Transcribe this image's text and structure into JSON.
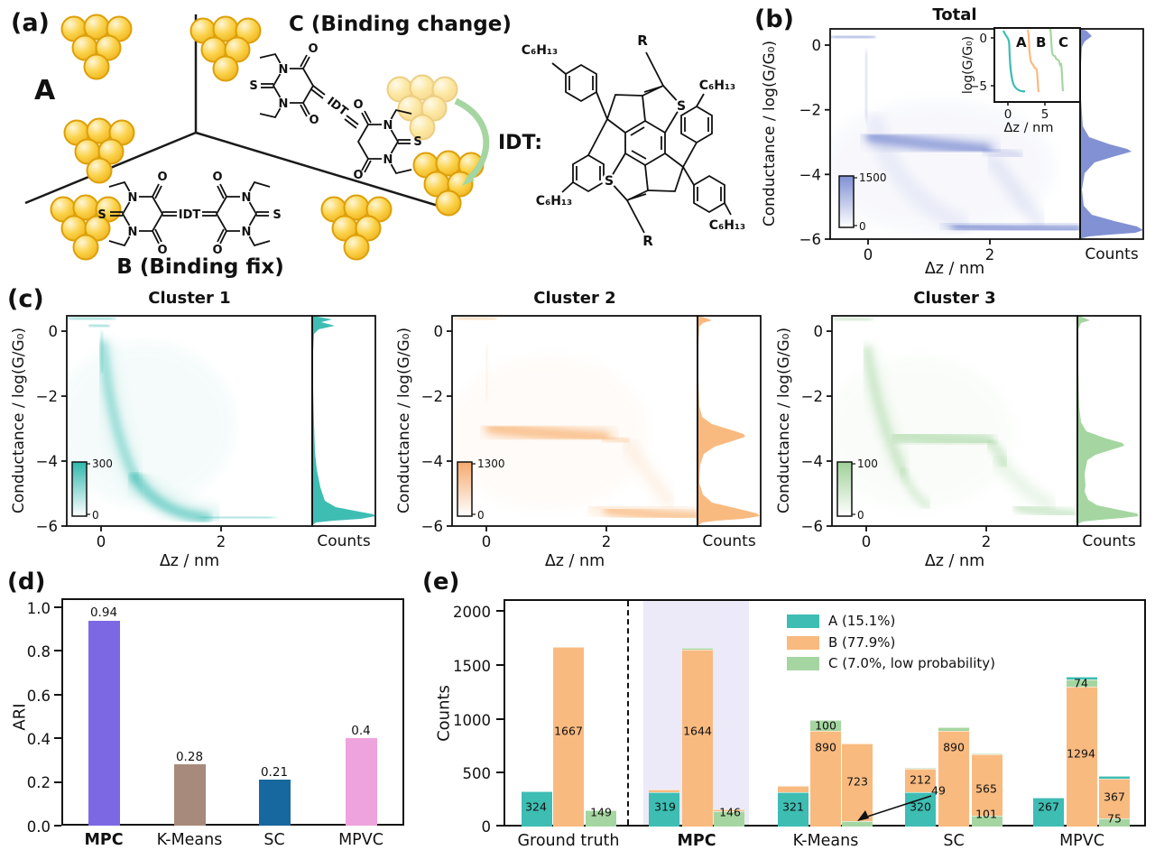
{
  "colors": {
    "A": "#3ebdb3",
    "B": "#f9ba80",
    "C": "#a5d6a1"
  },
  "panel_tags": {
    "a": "(a)",
    "b": "(b)",
    "c": "(c)",
    "d": "(d)",
    "e": "(e)"
  },
  "panel_a": {
    "tag": "(a)",
    "label_a": "A",
    "label_b": "B (Binding fix)",
    "label_c": "C (Binding change)",
    "idt_prefix": "IDT:",
    "idt": "IDT",
    "atom_s": "S",
    "atom_n": "N",
    "atom_o": "O",
    "r_group": "R",
    "hexyl": "C₆H₁₃"
  },
  "chart_data": [
    {
      "id": "total",
      "type": "heatmap",
      "title": "Total",
      "xlabel": "Δz / nm",
      "ylabel": "Conductance / log(G/G₀)",
      "marginal_label": "Counts",
      "x_ticks": [
        0,
        2
      ],
      "y_ticks": [
        0,
        -2,
        -4,
        -6
      ],
      "x_tick_labels": [
        "0",
        "2"
      ],
      "y_tick_labels": [
        "0",
        "−2",
        "−4",
        "−6"
      ],
      "x_range": [
        -0.65,
        3.6
      ],
      "y_range": [
        0.6,
        -6.1
      ],
      "colorbar": {
        "min": 0,
        "max": 1500,
        "min_label": "0",
        "max_label": "1500"
      },
      "color": "#8191d3",
      "density_features": [
        {
          "feature": "snap-off cliff",
          "x": 0,
          "y": [
            0.5,
            -2.2
          ]
        },
        {
          "feature": "molecular plateau",
          "y": [
            -2.9,
            -3.6
          ],
          "x": [
            0.2,
            2.2
          ]
        },
        {
          "feature": "noise floor band",
          "y": [
            -5.6,
            -6.0
          ],
          "x": [
            1.4,
            3.6
          ]
        }
      ],
      "inset": {
        "xlabel": "Δz / nm",
        "ylabel": "log(G/G₀)",
        "x_tick_labels": [
          "0",
          "5"
        ],
        "y_tick_labels": [
          "0",
          "−5"
        ],
        "series": [
          {
            "label": "A",
            "color_key": "A"
          },
          {
            "label": "B",
            "color_key": "B"
          },
          {
            "label": "C",
            "color_key": "C"
          }
        ]
      }
    },
    {
      "id": "cluster1",
      "type": "heatmap",
      "title": "Cluster 1",
      "xlabel": "Δz / nm",
      "ylabel": "Conductance / log(G/G₀)",
      "marginal_label": "Counts",
      "x_ticks": [
        0,
        2
      ],
      "y_ticks": [
        0,
        -2,
        -4,
        -6
      ],
      "x_tick_labels": [
        "0",
        "2"
      ],
      "y_tick_labels": [
        "0",
        "−2",
        "−4",
        "−6"
      ],
      "colorbar": {
        "min": 0,
        "max": 300,
        "min_label": "0",
        "max_label": "300"
      },
      "color": "#3ebdb3",
      "density_features": [
        {
          "feature": "snap-off cliff",
          "x": 0,
          "y": [
            0.5,
            -1.5
          ]
        },
        {
          "feature": "exponential decay to noise floor",
          "x": [
            0,
            1.3
          ],
          "y": [
            -1.5,
            -5.8
          ]
        },
        {
          "feature": "noise floor band",
          "y": [
            -5.7,
            -6.0
          ],
          "x": [
            1.0,
            2.8
          ]
        }
      ]
    },
    {
      "id": "cluster2",
      "type": "heatmap",
      "title": "Cluster 2",
      "xlabel": "Δz / nm",
      "ylabel": "Conductance / log(G/G₀)",
      "marginal_label": "Counts",
      "x_ticks": [
        0,
        2
      ],
      "y_ticks": [
        0,
        -2,
        -4,
        -6
      ],
      "x_tick_labels": [
        "0",
        "2"
      ],
      "y_tick_labels": [
        "0",
        "−2",
        "−4",
        "−6"
      ],
      "colorbar": {
        "min": 0,
        "max": 1300,
        "min_label": "0",
        "max_label": "1300"
      },
      "color": "#f9ba80",
      "density_features": [
        {
          "feature": "snap-off cliff",
          "x": 0,
          "y": [
            0.5,
            -2.3
          ]
        },
        {
          "feature": "molecular plateau",
          "y": [
            -3.0,
            -3.6
          ],
          "x": [
            0.1,
            2.2
          ]
        },
        {
          "feature": "noise floor band",
          "y": [
            -5.6,
            -6.0
          ],
          "x": [
            2.0,
            3.6
          ]
        }
      ]
    },
    {
      "id": "cluster3",
      "type": "heatmap",
      "title": "Cluster 3",
      "xlabel": "Δz / nm",
      "ylabel": "Conductance / log(G/G₀)",
      "marginal_label": "Counts",
      "x_ticks": [
        0,
        2
      ],
      "y_ticks": [
        0,
        -2,
        -4,
        -6
      ],
      "x_tick_labels": [
        "0",
        "2"
      ],
      "y_tick_labels": [
        "0",
        "−2",
        "−4",
        "−6"
      ],
      "colorbar": {
        "min": 0,
        "max": 100,
        "min_label": "0",
        "max_label": "100"
      },
      "color": "#a5d6a1",
      "density_features": [
        {
          "feature": "snap-off cliff",
          "x": 0,
          "y": [
            0.5,
            -1.8
          ]
        },
        {
          "feature": "sloped decay streaks",
          "x": [
            0,
            0.9
          ],
          "y": [
            -1.5,
            -5.5
          ]
        },
        {
          "feature": "binding-change hump",
          "y": [
            -3.0,
            -3.9
          ],
          "x": [
            1.0,
            2.3
          ]
        },
        {
          "feature": "noise floor band",
          "y": [
            -5.6,
            -6.0
          ],
          "x": [
            2.2,
            3.6
          ]
        }
      ]
    },
    {
      "id": "ari",
      "type": "bar",
      "ylabel": "ARI",
      "categories": [
        "MPC",
        "K-Means",
        "SC",
        "MPVC"
      ],
      "bold_category": "MPC",
      "values": [
        0.94,
        0.28,
        0.21,
        0.4
      ],
      "value_labels": [
        "0.94",
        "0.28",
        "0.21",
        "0.4"
      ],
      "y_tick_labels": [
        "1.0",
        "0.8",
        "0.6",
        "0.4",
        "0.2",
        "0.0"
      ],
      "ylim": [
        0,
        1.05
      ],
      "bar_colors": [
        "#7d68e4",
        "#a78a7b",
        "#16689e",
        "#efa3dc"
      ]
    },
    {
      "id": "counts_by_method",
      "type": "stacked_bar",
      "ylabel": "Counts",
      "ylim": [
        0,
        2110
      ],
      "y_ticks": [
        0,
        500,
        1000,
        1500,
        2000
      ],
      "y_tick_labels": [
        "2000",
        "1500",
        "1000",
        "500",
        "0"
      ],
      "legend": [
        {
          "key": "A",
          "label": "A (15.1%)"
        },
        {
          "key": "B",
          "label": "B (77.9%)"
        },
        {
          "key": "C",
          "label": "C (7.0%, low probability)"
        }
      ],
      "highlight_group": "MPC",
      "annotation": {
        "text": "49",
        "target": "K-Means third bar bottom segment"
      },
      "groups": [
        {
          "label": "Ground truth",
          "bold": false,
          "bars": [
            {
              "segments": [
                {
                  "c": "A",
                  "v": 324
                }
              ],
              "labels": [
                "324"
              ]
            },
            {
              "segments": [
                {
                  "c": "B",
                  "v": 1667
                }
              ],
              "labels": [
                "1667"
              ]
            },
            {
              "segments": [
                {
                  "c": "C",
                  "v": 149
                }
              ],
              "labels": [
                "149"
              ]
            }
          ]
        },
        {
          "label": "MPC",
          "bold": true,
          "bars": [
            {
              "segments": [
                {
                  "c": "A",
                  "v": 319
                },
                {
                  "c": "B",
                  "v": 21
                }
              ],
              "labels": [
                "319"
              ]
            },
            {
              "segments": [
                {
                  "c": "B",
                  "v": 1644
                },
                {
                  "c": "C",
                  "v": 12
                }
              ],
              "labels": [
                "1644"
              ]
            },
            {
              "segments": [
                {
                  "c": "C",
                  "v": 146
                },
                {
                  "c": "B",
                  "v": 12
                }
              ],
              "labels": [
                "146"
              ]
            }
          ]
        },
        {
          "label": "K-Means",
          "bold": false,
          "bars": [
            {
              "segments": [
                {
                  "c": "A",
                  "v": 321
                },
                {
                  "c": "B",
                  "v": 52
                }
              ],
              "labels": [
                "321"
              ]
            },
            {
              "segments": [
                {
                  "c": "B",
                  "v": 890
                },
                {
                  "c": "C",
                  "v": 100
                }
              ],
              "labels": [
                "890",
                "100"
              ]
            },
            {
              "segments": [
                {
                  "c": "C",
                  "v": 49
                },
                {
                  "c": "B",
                  "v": 723
                }
              ],
              "labels": [
                "723",
                "49"
              ]
            }
          ]
        },
        {
          "label": "SC",
          "bold": false,
          "bars": [
            {
              "segments": [
                {
                  "c": "A",
                  "v": 320
                },
                {
                  "c": "B",
                  "v": 212
                },
                {
                  "c": "C",
                  "v": 16
                }
              ],
              "labels": [
                "320",
                "212"
              ]
            },
            {
              "segments": [
                {
                  "c": "B",
                  "v": 890
                },
                {
                  "c": "C",
                  "v": 28
                }
              ],
              "labels": [
                "890"
              ]
            },
            {
              "segments": [
                {
                  "c": "C",
                  "v": 101
                },
                {
                  "c": "B",
                  "v": 565
                },
                {
                  "c": "C",
                  "v": 10
                }
              ],
              "labels": [
                "565",
                "101"
              ]
            }
          ]
        },
        {
          "label": "MPVC",
          "bold": false,
          "bars": [
            {
              "segments": [
                {
                  "c": "A",
                  "v": 267
                }
              ],
              "labels": [
                "267"
              ]
            },
            {
              "segments": [
                {
                  "c": "B",
                  "v": 1294
                },
                {
                  "c": "C",
                  "v": 74
                },
                {
                  "c": "A",
                  "v": 22
                }
              ],
              "labels": [
                "1294",
                "74"
              ]
            },
            {
              "segments": [
                {
                  "c": "C",
                  "v": 75
                },
                {
                  "c": "B",
                  "v": 367
                },
                {
                  "c": "A",
                  "v": 28
                }
              ],
              "labels": [
                "367",
                "75"
              ]
            }
          ]
        }
      ]
    }
  ]
}
